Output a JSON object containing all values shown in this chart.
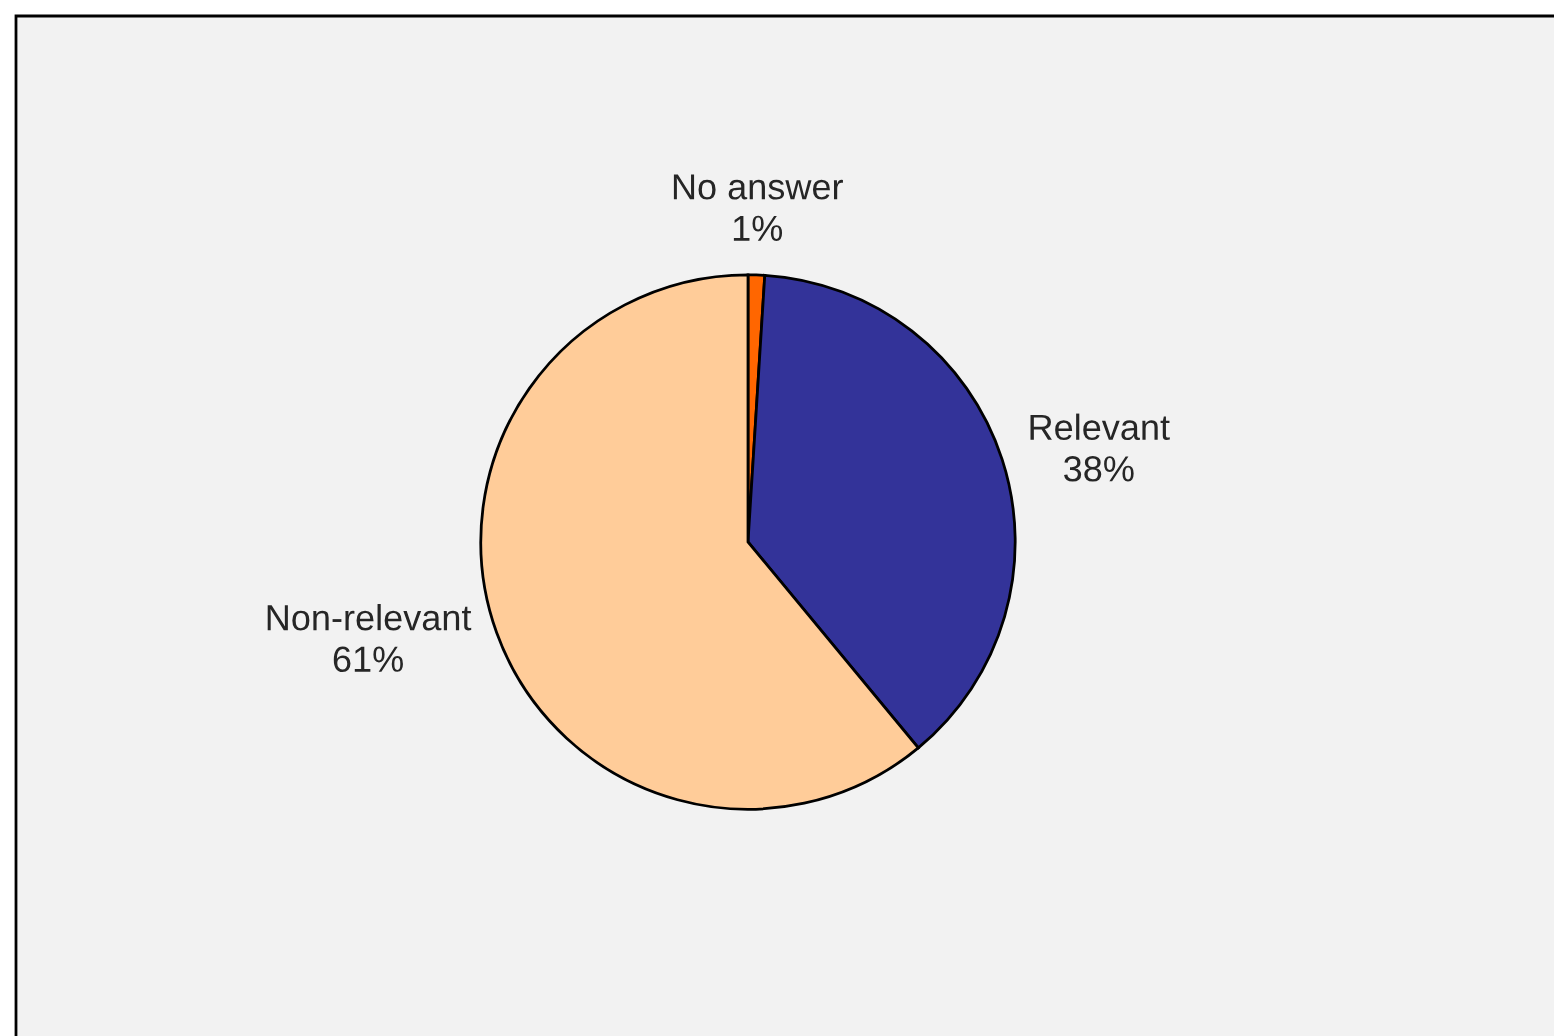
{
  "chart_data": {
    "type": "pie",
    "categories": [
      "No answer",
      "Relevant",
      "Non-relevant"
    ],
    "values": [
      1,
      38,
      61
    ],
    "colors": [
      "#ff6600",
      "#333399",
      "#ffcc99"
    ],
    "value_labels": [
      "1%",
      "38%",
      "61%"
    ]
  }
}
